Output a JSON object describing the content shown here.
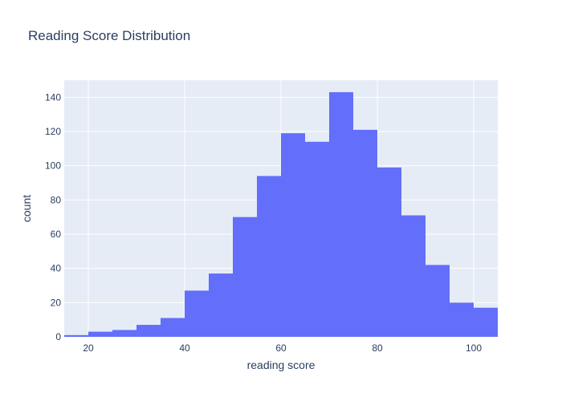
{
  "chart_data": {
    "type": "bar",
    "histogram": true,
    "title": "Reading Score Distribution",
    "xlabel": "reading score",
    "ylabel": "count",
    "bin_width": 5,
    "bins": [
      {
        "start": 15,
        "end": 20,
        "count": 1
      },
      {
        "start": 20,
        "end": 25,
        "count": 3
      },
      {
        "start": 25,
        "end": 30,
        "count": 4
      },
      {
        "start": 30,
        "end": 35,
        "count": 7
      },
      {
        "start": 35,
        "end": 40,
        "count": 11
      },
      {
        "start": 40,
        "end": 45,
        "count": 27
      },
      {
        "start": 45,
        "end": 50,
        "count": 37
      },
      {
        "start": 50,
        "end": 55,
        "count": 70
      },
      {
        "start": 55,
        "end": 60,
        "count": 94
      },
      {
        "start": 60,
        "end": 65,
        "count": 119
      },
      {
        "start": 65,
        "end": 70,
        "count": 114
      },
      {
        "start": 70,
        "end": 75,
        "count": 143
      },
      {
        "start": 75,
        "end": 80,
        "count": 121
      },
      {
        "start": 80,
        "end": 85,
        "count": 99
      },
      {
        "start": 85,
        "end": 90,
        "count": 71
      },
      {
        "start": 90,
        "end": 95,
        "count": 42
      },
      {
        "start": 95,
        "end": 100,
        "count": 20
      },
      {
        "start": 100,
        "end": 105,
        "count": 17
      }
    ],
    "xlim": [
      15,
      105
    ],
    "ylim": [
      0,
      150
    ],
    "xticks": [
      20,
      40,
      60,
      80,
      100
    ],
    "yticks": [
      0,
      20,
      40,
      60,
      80,
      100,
      120,
      140
    ],
    "grid": true,
    "colors": {
      "bar": "#636efa",
      "plot_bg": "#e5ecf6",
      "grid": "#ffffff",
      "text": "#2a3f5f",
      "tick_text": "#2a3f5f"
    }
  }
}
